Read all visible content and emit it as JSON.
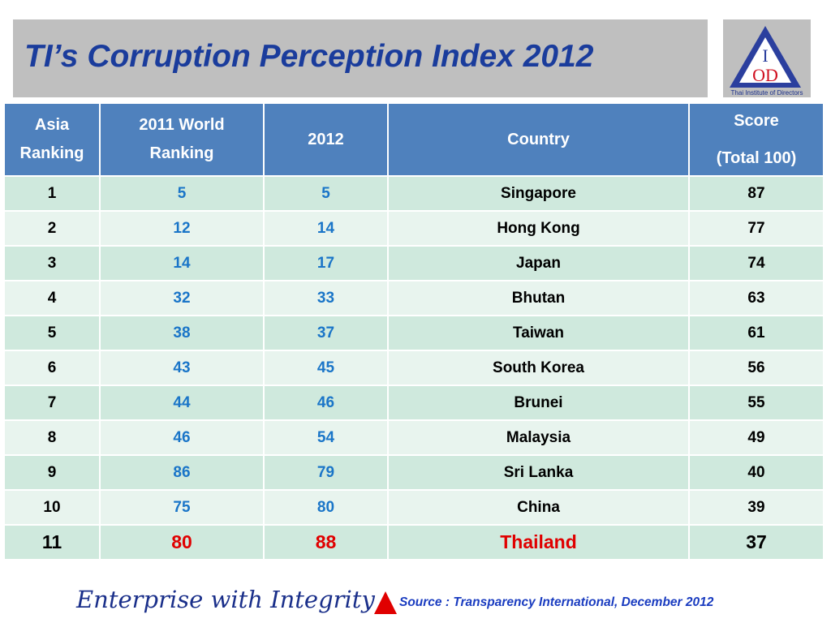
{
  "header": {
    "title": "TI’s Corruption Perception Index 2012"
  },
  "logo": {
    "top": "I",
    "bottom": "OD",
    "caption": "Thai Institute of Directors"
  },
  "table": {
    "columns": [
      "Asia Ranking",
      "2011 World Ranking",
      "2012",
      "Country",
      "Score"
    ],
    "score_note": "(Total 100)",
    "rows": [
      [
        1,
        5,
        5,
        "Singapore",
        87
      ],
      [
        2,
        12,
        14,
        "Hong Kong",
        77
      ],
      [
        3,
        14,
        17,
        "Japan",
        74
      ],
      [
        4,
        32,
        33,
        "Bhutan",
        63
      ],
      [
        5,
        38,
        37,
        "Taiwan",
        61
      ],
      [
        6,
        43,
        45,
        "South Korea",
        56
      ],
      [
        7,
        44,
        46,
        "Brunei",
        55
      ],
      [
        8,
        46,
        54,
        "Malaysia",
        49
      ],
      [
        9,
        86,
        79,
        "Sri Lanka",
        40
      ],
      [
        10,
        75,
        80,
        "China",
        39
      ],
      [
        11,
        80,
        88,
        "Thailand",
        37
      ]
    ]
  },
  "footer": {
    "tagline": "Enterprise with Integrity",
    "source": "Source : Transparency International, December 2012"
  }
}
